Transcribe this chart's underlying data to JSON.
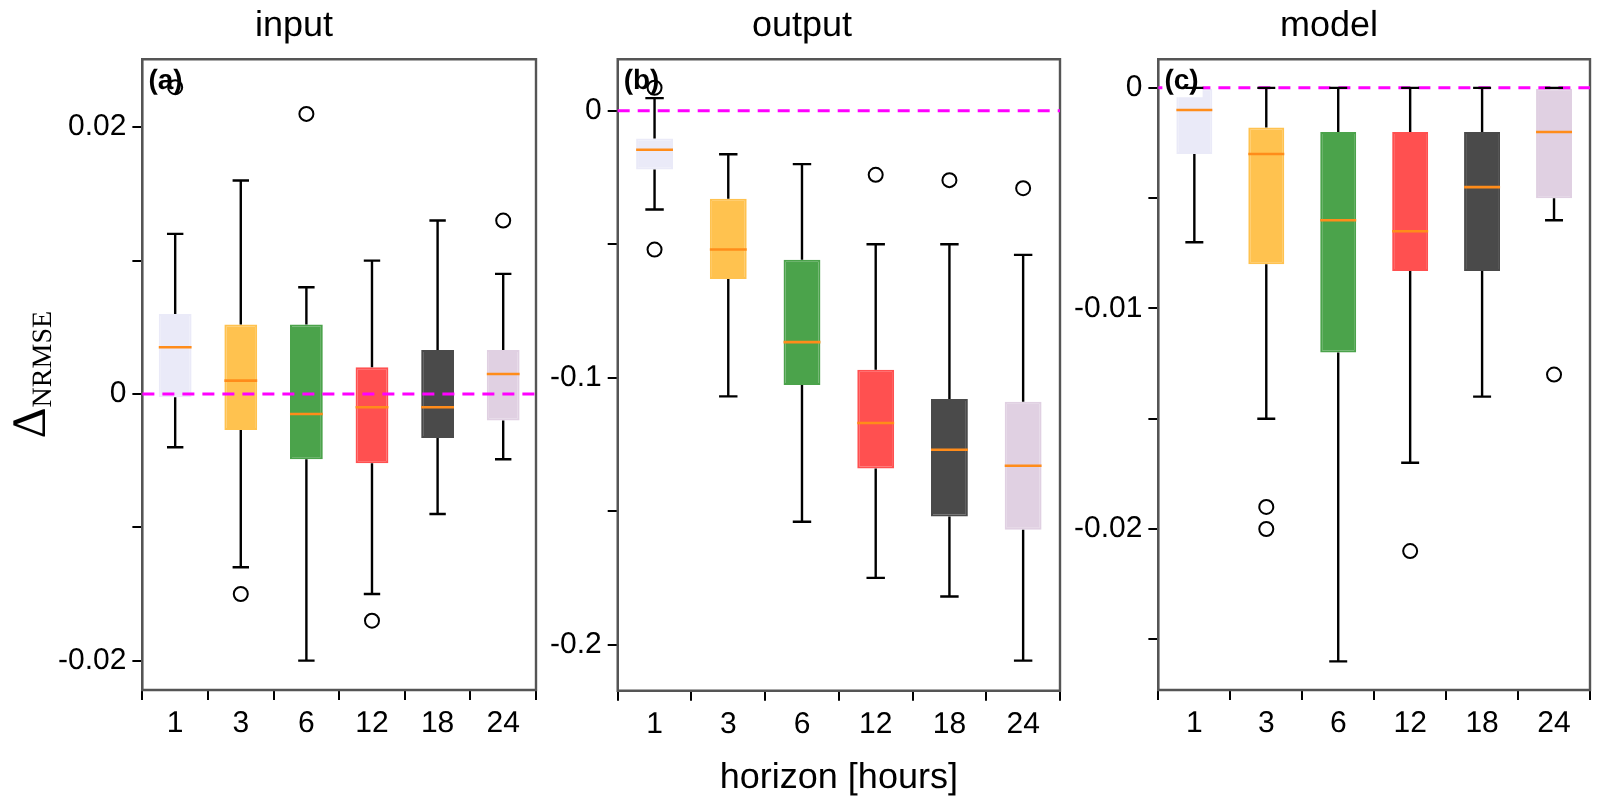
{
  "chart_data": [
    {
      "type": "box",
      "title": "input",
      "ylabel": "Δ$_{NRMSE}$",
      "annotations": [
        "(a)"
      ],
      "categories": [
        "1",
        "3",
        "6",
        "12",
        "18",
        "24"
      ],
      "colors": [
        "#eaeaf8",
        "#ffc24f",
        "#4ba34b",
        "#ff5050",
        "#4a4a4a",
        "#e0d0e2"
      ],
      "boxes": [
        {
          "low": -0.004,
          "q1": -0.00025,
          "median": 0.0035,
          "q3": 0.006,
          "high": 0.012,
          "outliers": [
            0.023
          ]
        },
        {
          "low": -0.013,
          "q1": -0.0027,
          "median": 0.001,
          "q3": 0.0052,
          "high": 0.016,
          "outliers": [
            -0.015
          ]
        },
        {
          "low": -0.02,
          "q1": -0.0049,
          "median": -0.0015,
          "q3": 0.0052,
          "high": 0.008,
          "outliers": [
            0.021
          ]
        },
        {
          "low": -0.015,
          "q1": -0.0052,
          "median": -0.001,
          "q3": 0.002,
          "high": 0.01,
          "outliers": [
            -0.017
          ]
        },
        {
          "low": -0.009,
          "q1": -0.0033,
          "median": -0.001,
          "q3": 0.0033,
          "high": 0.013
        },
        {
          "low": -0.0049,
          "q1": -0.002,
          "median": 0.0015,
          "q3": 0.0033,
          "high": 0.009,
          "outliers": [
            0.013
          ]
        }
      ],
      "ylim": [
        -0.0222,
        0.0251
      ],
      "yticks": [
        -0.02,
        {
          "value": -0.01,
          "label": null
        },
        0,
        {
          "value": 0.01,
          "label": null
        },
        0.02
      ],
      "ref_lines": [
        {
          "axis": "y",
          "value": 0,
          "color": "#ff00ff",
          "line_style": "dashed"
        }
      ],
      "grid": false,
      "legend": false
    },
    {
      "type": "box",
      "title": "output",
      "xlabel": "horizon [hours]",
      "annotations": [
        "(b)"
      ],
      "categories": [
        "1",
        "3",
        "6",
        "12",
        "18",
        "24"
      ],
      "colors": [
        "#eaeaf8",
        "#ffc24f",
        "#4ba34b",
        "#ff5050",
        "#4a4a4a",
        "#e0d0e2"
      ],
      "boxes": [
        {
          "low": -0.037,
          "q1": -0.022,
          "median": -0.0146,
          "q3": -0.0104,
          "high": 0.0047,
          "outliers": [
            0.0086,
            -0.052
          ]
        },
        {
          "low": -0.107,
          "q1": -0.063,
          "median": -0.052,
          "q3": -0.033,
          "high": -0.0163
        },
        {
          "low": -0.154,
          "q1": -0.1027,
          "median": -0.0867,
          "q3": -0.0558,
          "high": -0.02
        },
        {
          "low": -0.175,
          "q1": -0.134,
          "median": -0.117,
          "q3": -0.097,
          "high": -0.05,
          "outliers": [
            -0.024
          ]
        },
        {
          "low": -0.182,
          "q1": -0.152,
          "median": -0.127,
          "q3": -0.108,
          "high": -0.05,
          "outliers": [
            -0.026
          ]
        },
        {
          "low": -0.206,
          "q1": -0.157,
          "median": -0.133,
          "q3": -0.109,
          "high": -0.054,
          "outliers": [
            -0.029
          ]
        }
      ],
      "ylim": [
        -0.2173,
        0.0193
      ],
      "yticks": [
        -0.2,
        {
          "value": -0.15,
          "label": null
        },
        -0.1,
        {
          "value": -0.05,
          "label": null
        },
        0
      ],
      "ref_lines": [
        {
          "axis": "y",
          "value": 0,
          "color": "#ff00ff",
          "line_style": "dashed"
        }
      ],
      "grid": false,
      "legend": false
    },
    {
      "type": "box",
      "title": "model",
      "annotations": [
        "(c)"
      ],
      "categories": [
        "1",
        "3",
        "6",
        "12",
        "18",
        "24"
      ],
      "colors": [
        "#eaeaf8",
        "#ffc24f",
        "#4ba34b",
        "#ff5050",
        "#4a4a4a",
        "#e0d0e2"
      ],
      "boxes": [
        {
          "low": -0.007,
          "q1": -0.003,
          "median": -0.001,
          "q3": 0,
          "high": 0
        },
        {
          "low": -0.015,
          "q1": -0.008,
          "median": -0.003,
          "q3": -0.0018,
          "high": 0,
          "outliers": [
            -0.019,
            -0.02
          ]
        },
        {
          "low": -0.026,
          "q1": -0.012,
          "median": -0.006,
          "q3": -0.002,
          "high": 0
        },
        {
          "low": -0.017,
          "q1": -0.0083,
          "median": -0.0065,
          "q3": -0.002,
          "high": 0,
          "outliers": [
            -0.021
          ]
        },
        {
          "low": -0.014,
          "q1": -0.0083,
          "median": -0.0045,
          "q3": -0.002,
          "high": 0
        },
        {
          "low": -0.006,
          "q1": -0.005,
          "median": -0.002,
          "q3": 0,
          "high": 0,
          "outliers": [
            -0.013
          ]
        }
      ],
      "ylim": [
        -0.0273,
        0.0013
      ],
      "yticks": [
        {
          "value": -0.025,
          "label": null
        },
        -0.02,
        {
          "value": -0.015,
          "label": null
        },
        -0.01,
        {
          "value": -0.005,
          "label": null
        },
        0
      ],
      "ref_lines": [
        {
          "axis": "y",
          "value": 0,
          "color": "#ff00ff",
          "line_style": "dashed"
        }
      ],
      "grid": false,
      "legend": false
    }
  ]
}
